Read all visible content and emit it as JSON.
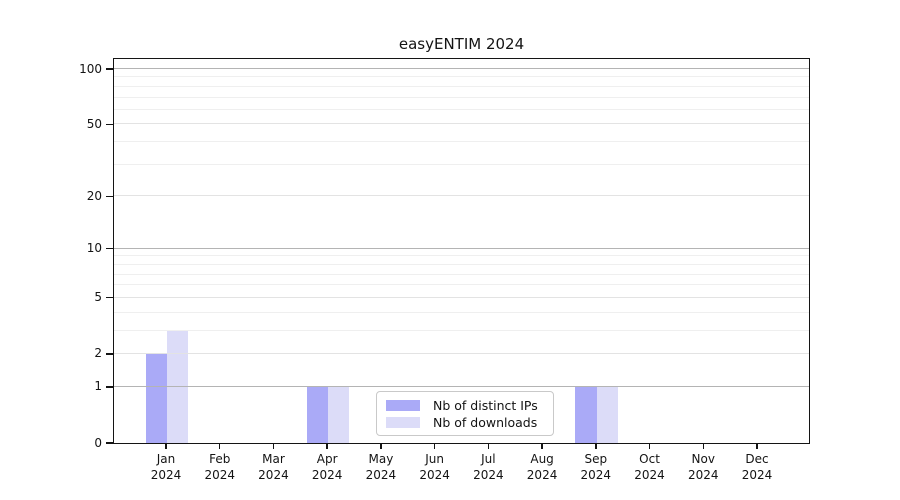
{
  "chart_data": {
    "type": "bar",
    "title": "easyENTIM 2024",
    "year": "2024",
    "categories": [
      "Jan 2024",
      "Feb 2024",
      "Mar 2024",
      "Apr 2024",
      "May 2024",
      "Jun 2024",
      "Jul 2024",
      "Aug 2024",
      "Sep 2024",
      "Oct 2024",
      "Nov 2024",
      "Dec 2024"
    ],
    "month_labels": [
      "Jan",
      "Feb",
      "Mar",
      "Apr",
      "May",
      "Jun",
      "Jul",
      "Aug",
      "Sep",
      "Oct",
      "Nov",
      "Dec"
    ],
    "series": [
      {
        "name": "Nb of distinct IPs",
        "color": "#aaaaf7",
        "values": [
          2,
          0,
          0,
          1,
          0,
          0,
          0,
          0,
          1,
          0,
          0,
          0
        ]
      },
      {
        "name": "Nb of downloads",
        "color": "#dcdcf8",
        "values": [
          3,
          0,
          0,
          1,
          0,
          0,
          0,
          0,
          1,
          0,
          0,
          0
        ]
      }
    ],
    "y_axis": {
      "scale": "log1p",
      "ticks": [
        0,
        1,
        2,
        5,
        10,
        20,
        50,
        100
      ],
      "minor_ticks": [
        3,
        4,
        6,
        7,
        8,
        9,
        30,
        40,
        60,
        70,
        80,
        90
      ],
      "decade_ticks": [
        1,
        10,
        100
      ],
      "range": [
        0,
        117
      ]
    },
    "legend": {
      "position": "lower center",
      "entries": [
        "Nb of distinct IPs",
        "Nb of downloads"
      ]
    },
    "grid": true
  },
  "colors": {
    "grid_decade": "#b4b4b4",
    "grid_major": "#e3e3e3",
    "grid_minor": "#efefef",
    "axis": "#141414",
    "text": "#141414"
  }
}
